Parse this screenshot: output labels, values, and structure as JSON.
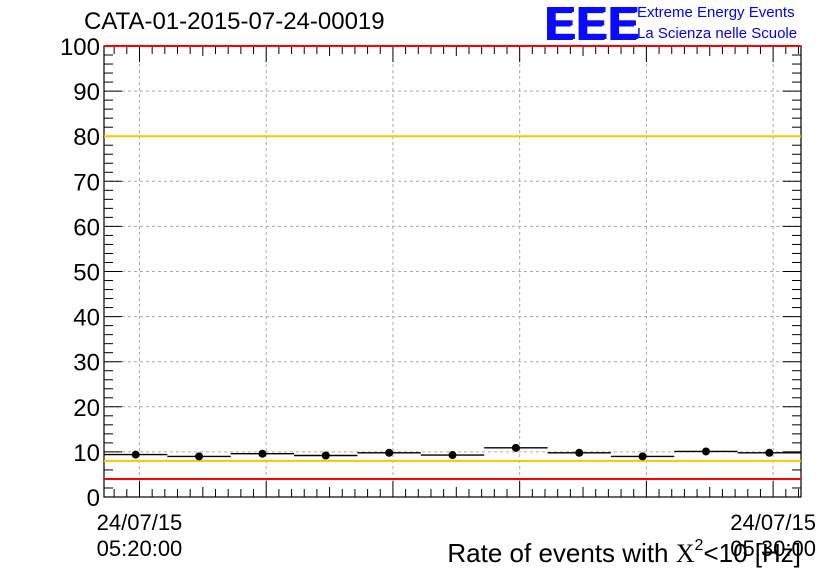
{
  "title": "CATA-01-2015-07-24-00019",
  "logo": {
    "mark": "EEE",
    "line1": "Extreme Energy Events",
    "line2": "La Scienza nelle Scuole",
    "color": "#0000ff"
  },
  "chart_data": {
    "type": "scatter",
    "title": "CATA-01-2015-07-24-00019",
    "ylabel": "",
    "xlabel_parts": {
      "prefix": "Rate of events with ",
      "symbol": "X",
      "sup": "2",
      "suffix": "<10 [Hz]"
    },
    "ylim": [
      0,
      100
    ],
    "yticks": [
      0,
      10,
      20,
      30,
      40,
      50,
      60,
      70,
      80,
      90,
      100
    ],
    "x_tick_labels": [
      {
        "date": "24/07/15",
        "time": "05:20:00"
      },
      {
        "date": "24/07/15",
        "time": "05:30:00"
      }
    ],
    "x_label_positions_units": [
      0.56,
      10.56
    ],
    "xlim_units": [
      0,
      11
    ],
    "grid": true,
    "series": [
      {
        "x": [
          0.5,
          1.5,
          2.5,
          3.5,
          4.5,
          5.5,
          6.5,
          7.5,
          8.5,
          9.5,
          10.5
        ],
        "values": [
          9.4,
          9.0,
          9.6,
          9.2,
          9.8,
          9.3,
          10.9,
          9.8,
          9.0,
          10.1,
          9.8
        ]
      }
    ],
    "reference_lines": [
      {
        "y": 80,
        "color": "#f5c800"
      },
      {
        "y": 8,
        "color": "#f5c800"
      },
      {
        "y": 100,
        "color": "#ff0000"
      },
      {
        "y": 4,
        "color": "#ff0000"
      }
    ],
    "colors": {
      "markers": "#000000",
      "grid": "#aaaaaa"
    }
  }
}
